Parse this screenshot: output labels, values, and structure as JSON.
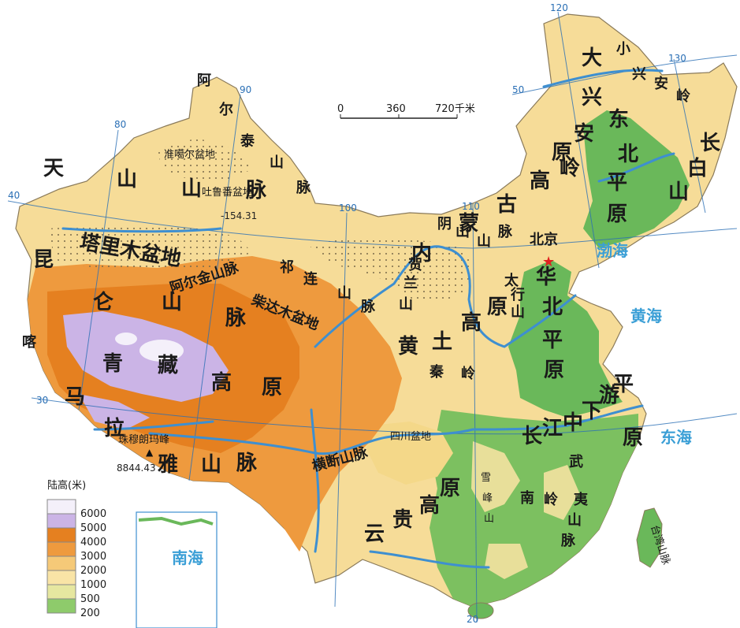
{
  "scale_bar": {
    "start": "0",
    "mid": "360",
    "end": "720千米"
  },
  "grid_labels": {
    "lon80": "80",
    "lon90": "90",
    "lon100": "100",
    "lon110": "110",
    "lon120": "120",
    "lon130": "130",
    "lat50": "50",
    "lat40": "40",
    "lat30": "30",
    "lat20": "20"
  },
  "mountains": {
    "altai": [
      "阿",
      "尔",
      "泰",
      "山",
      "脉"
    ],
    "tianshan": [
      "天",
      "山",
      "山",
      "脉"
    ],
    "kunlun": [
      "昆",
      "仑",
      "山",
      "脉"
    ],
    "karakoram": [
      "喀"
    ],
    "himalaya": [
      "马",
      "拉",
      "雅",
      "山",
      "脉"
    ],
    "altun": "阿尔金山脉",
    "qilian": [
      "祁",
      "连",
      "山",
      "脉"
    ],
    "hengduan": "横断山脉",
    "daxinganling": [
      "大",
      "兴",
      "安",
      "岭"
    ],
    "xiaoxinganling": [
      "小",
      "兴",
      "安",
      "岭"
    ],
    "changbai": [
      "长",
      "白",
      "山"
    ],
    "yinshan": [
      "阴",
      "山",
      "山",
      "脉"
    ],
    "helan": [
      "贺",
      "兰",
      "山"
    ],
    "taihang": [
      "太",
      "行",
      "山"
    ],
    "qinling": [
      "秦",
      "岭"
    ],
    "xuefeng": [
      "雪",
      "峰",
      "山"
    ],
    "nanling": [
      "南",
      "岭"
    ],
    "wuyi": [
      "武",
      "夷",
      "山",
      "脉"
    ],
    "taiwan": "台湾山脉"
  },
  "regions": {
    "qingzang": [
      "青",
      "藏",
      "高",
      "原"
    ],
    "neimenggu": [
      "内",
      "蒙",
      "古",
      "高",
      "原"
    ],
    "huangtu": [
      "黄",
      "土",
      "高",
      "原"
    ],
    "yungui": [
      "云",
      "贵",
      "高",
      "原"
    ],
    "dongbei": [
      "东",
      "北",
      "平",
      "原"
    ],
    "huabei": [
      "华",
      "北",
      "平",
      "原"
    ],
    "changjiang": [
      "长",
      "江",
      "中",
      "下",
      "游",
      "平",
      "原"
    ],
    "zhunggar": "准噶尔盆地",
    "tarim": "塔里木盆地",
    "turpan": "吐鲁番盆地",
    "qaidam": "柴达木盆地",
    "sichuan": "四川盆地"
  },
  "seas": {
    "bohai": "渤海",
    "huanghai": "黄海",
    "donghai": "东海",
    "nanhai": "南海"
  },
  "places": {
    "beijing": "北京",
    "everest": "珠穆朗玛峰"
  },
  "elevations": {
    "turpan": "-154.31",
    "everest": "8844.43"
  },
  "legend": {
    "title": "陆高(米)",
    "items": [
      {
        "label": "6000",
        "color": "#f4f0fa"
      },
      {
        "label": "5000",
        "color": "#cbb4e6"
      },
      {
        "label": "4000",
        "color": "#e58020"
      },
      {
        "label": "3000",
        "color": "#ee9a3e"
      },
      {
        "label": "2000",
        "color": "#f5c978"
      },
      {
        "label": "1000",
        "color": "#f9e4a6"
      },
      {
        "label": "500",
        "color": "#e6e7a0"
      },
      {
        "label": "200",
        "color": "#8ecb6b"
      }
    ]
  },
  "colors": {
    "sea": "#ffffff",
    "plain": "#6ab85a",
    "river": "#3e8fd0",
    "boundary": "#6a5a4a"
  }
}
